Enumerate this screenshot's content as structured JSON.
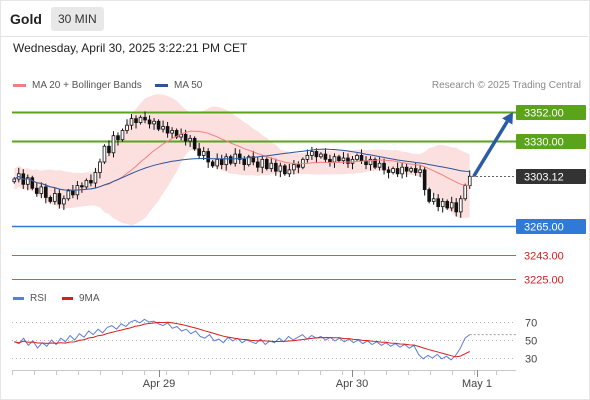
{
  "header": {
    "title": "Gold",
    "timeframe": "30 MIN"
  },
  "timestamp": "Wednesday, April 30, 2025 3:22:21 PM CET",
  "legend": {
    "ma20": {
      "label": "MA 20 + Bollinger Bands",
      "color": "#f08080"
    },
    "ma50": {
      "label": "MA 50",
      "color": "#2a5599"
    }
  },
  "credit": "Research © 2025 Trading Central",
  "rsi_legend": {
    "rsi": {
      "label": "RSI",
      "color": "#5b7fd6"
    },
    "ma9": {
      "label": "9MA",
      "color": "#d62020"
    }
  },
  "chart_data": [
    {
      "type": "candlestick",
      "instrument": "Gold",
      "interval": "30 MIN",
      "y_range": [
        3215,
        3365
      ],
      "x_labels": [
        "Apr 29",
        "Apr 30",
        "May 1"
      ],
      "current_price": "3303.12",
      "levels": [
        {
          "value": 3352.0,
          "label": "3352.00",
          "kind": "resistance",
          "color": "#5aa31a"
        },
        {
          "value": 3330.0,
          "label": "3330.00",
          "kind": "resistance",
          "color": "#5aa31a"
        },
        {
          "value": 3303.12,
          "label": "3303.12",
          "kind": "last",
          "color": "#333333"
        },
        {
          "value": 3265.0,
          "label": "3265.00",
          "kind": "pivot",
          "color": "#2e7ad6"
        },
        {
          "value": 3243.0,
          "label": "3243.00",
          "kind": "support",
          "color": "#e05050"
        },
        {
          "value": 3225.0,
          "label": "3225.00",
          "kind": "support",
          "color": "#e05050"
        }
      ],
      "closes": [
        3301,
        3305,
        3297,
        3302,
        3294,
        3290,
        3295,
        3287,
        3284,
        3290,
        3282,
        3286,
        3292,
        3289,
        3296,
        3295,
        3300,
        3298,
        3306,
        3314,
        3326,
        3321,
        3334,
        3331,
        3338,
        3342,
        3347,
        3344,
        3348,
        3346,
        3343,
        3345,
        3339,
        3341,
        3336,
        3338,
        3333,
        3335,
        3330,
        3332,
        3324,
        3319,
        3322,
        3314,
        3311,
        3316,
        3312,
        3318,
        3313,
        3320,
        3316,
        3312,
        3318,
        3314,
        3310,
        3316,
        3309,
        3313,
        3307,
        3311,
        3305,
        3308,
        3312,
        3310,
        3316,
        3319,
        3322,
        3318,
        3320,
        3316,
        3314,
        3318,
        3315,
        3317,
        3313,
        3316,
        3319,
        3315,
        3312,
        3316,
        3310,
        3313,
        3308,
        3306,
        3309,
        3305,
        3310,
        3307,
        3309,
        3306,
        3308,
        3293,
        3284,
        3286,
        3280,
        3284,
        3279,
        3283,
        3276,
        3286,
        3296,
        3303.12
      ],
      "projection": {
        "from": 3303.12,
        "to": 3352.0,
        "direction": "up"
      }
    },
    {
      "type": "line",
      "name": "RSI",
      "y_ticks": [
        70,
        50,
        30
      ],
      "series": [
        {
          "name": "RSI",
          "color": "#5b7fd6"
        },
        {
          "name": "9MA",
          "color": "#d62020"
        }
      ],
      "rsi_values": [
        48,
        46,
        52,
        44,
        49,
        41,
        47,
        43,
        50,
        45,
        52,
        48,
        55,
        50,
        57,
        53,
        60,
        56,
        62,
        58,
        64,
        66,
        62,
        68,
        65,
        70,
        72,
        69,
        73,
        70,
        71,
        68,
        66,
        69,
        63,
        65,
        60,
        62,
        57,
        60,
        54,
        52,
        56,
        49,
        51,
        47,
        53,
        49,
        52,
        47,
        50,
        48,
        46,
        51,
        45,
        49,
        47,
        52,
        48,
        54,
        50,
        53,
        56,
        51,
        55,
        52,
        54,
        50,
        53,
        49,
        52,
        48,
        51,
        47,
        50,
        46,
        49,
        45,
        48,
        44,
        47,
        43,
        46,
        42,
        45,
        41,
        44,
        34,
        29,
        33,
        30,
        34,
        29,
        32,
        28,
        33,
        41,
        52,
        56
      ]
    }
  ]
}
